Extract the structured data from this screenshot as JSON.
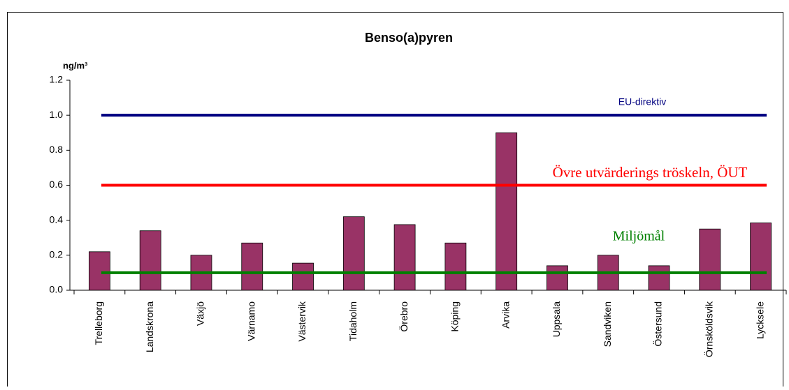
{
  "chart_data": {
    "type": "bar",
    "title": "Benso(a)pyren",
    "y_label": "ng/m³",
    "categories": [
      "Trelleborg",
      "Landskrona",
      "Växjö",
      "Värnamo",
      "Västervik",
      "Tidaholm",
      "Örebro",
      "Köping",
      "Arvika",
      "Uppsala",
      "Sandviken",
      "Östersund",
      "Örnsköldsvik",
      "Lycksele"
    ],
    "values": [
      0.22,
      0.34,
      0.2,
      0.27,
      0.155,
      0.42,
      0.375,
      0.27,
      0.9,
      0.14,
      0.2,
      0.14,
      0.35,
      0.385
    ],
    "color": "#993366",
    "ylim": [
      0,
      1.2
    ],
    "yticks": [
      {
        "value": 0,
        "label": "0.0"
      },
      0.2,
      0.4,
      0.6,
      0.8,
      {
        "value": 1,
        "label": "1.0"
      },
      1.2
    ],
    "grid": false,
    "reference_lines": [
      {
        "name": "EU-direktiv",
        "value": 1,
        "color": "#000080"
      },
      {
        "name": "Övre utvärderings tröskeln, ÖUT",
        "value": 0.6,
        "color": "#ff0000"
      },
      {
        "name": "Miljömål",
        "value": 0.1,
        "color": "#008000"
      }
    ]
  }
}
